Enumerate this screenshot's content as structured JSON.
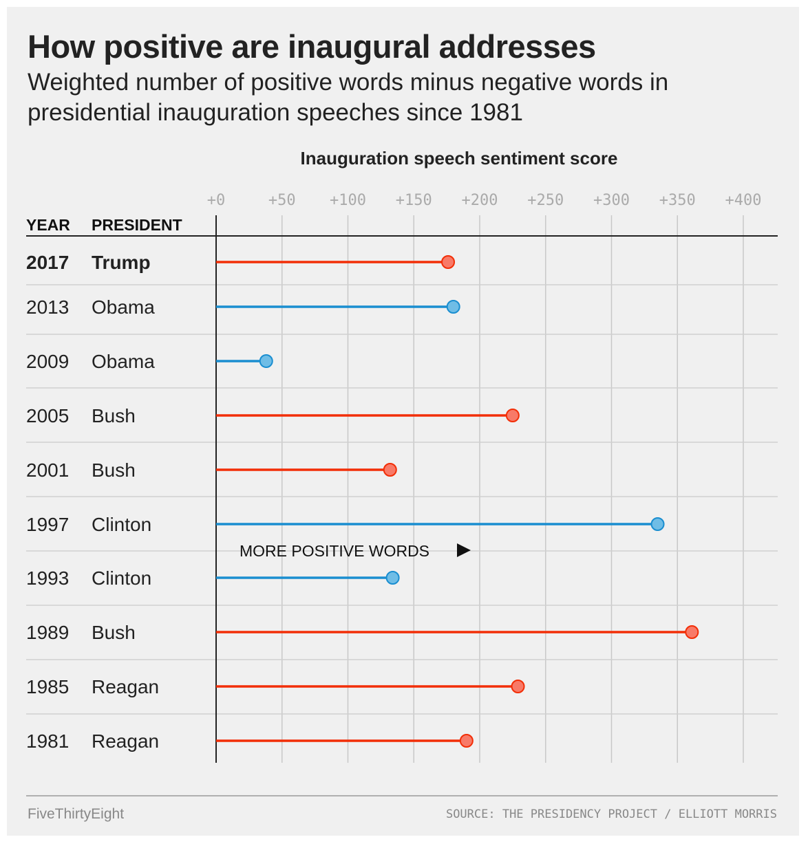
{
  "title": "How positive are inaugural addresses",
  "subtitle": "Weighted number of positive words minus negative words in presidential inauguration speeches since 1981",
  "footer": {
    "brand": "FiveThirtyEight",
    "source": "SOURCE: THE PRESIDENCY PROJECT / ELLIOTT MORRIS"
  },
  "colors": {
    "republican": "#f22e07",
    "republican_dot": "#f87a68",
    "democrat": "#1a8ed0",
    "democrat_dot": "#6fbde6",
    "grid": "#c8c8c8",
    "axis": "#222222"
  },
  "chart_data": {
    "type": "lollipop",
    "axis_title": "Inauguration speech sentiment score",
    "xlim": [
      0,
      400
    ],
    "ticks": [
      0,
      50,
      100,
      150,
      200,
      250,
      300,
      350,
      400
    ],
    "tick_labels": [
      "+0",
      "+50",
      "+100",
      "+150",
      "+200",
      "+250",
      "+300",
      "+350",
      "+400"
    ],
    "column_headers": {
      "year": "YEAR",
      "president": "PRESIDENT"
    },
    "annotation": "MORE POSITIVE WORDS",
    "rows": [
      {
        "year": "2017",
        "president": "Trump",
        "party": "R",
        "value": 176,
        "highlight": true
      },
      {
        "year": "2013",
        "president": "Obama",
        "party": "D",
        "value": 180
      },
      {
        "year": "2009",
        "president": "Obama",
        "party": "D",
        "value": 38
      },
      {
        "year": "2005",
        "president": "Bush",
        "party": "R",
        "value": 225
      },
      {
        "year": "2001",
        "president": "Bush",
        "party": "R",
        "value": 132
      },
      {
        "year": "1997",
        "president": "Clinton",
        "party": "D",
        "value": 335
      },
      {
        "year": "1993",
        "president": "Clinton",
        "party": "D",
        "value": 134
      },
      {
        "year": "1989",
        "president": "Bush",
        "party": "R",
        "value": 361
      },
      {
        "year": "1985",
        "president": "Reagan",
        "party": "R",
        "value": 229
      },
      {
        "year": "1981",
        "president": "Reagan",
        "party": "R",
        "value": 190
      }
    ]
  }
}
